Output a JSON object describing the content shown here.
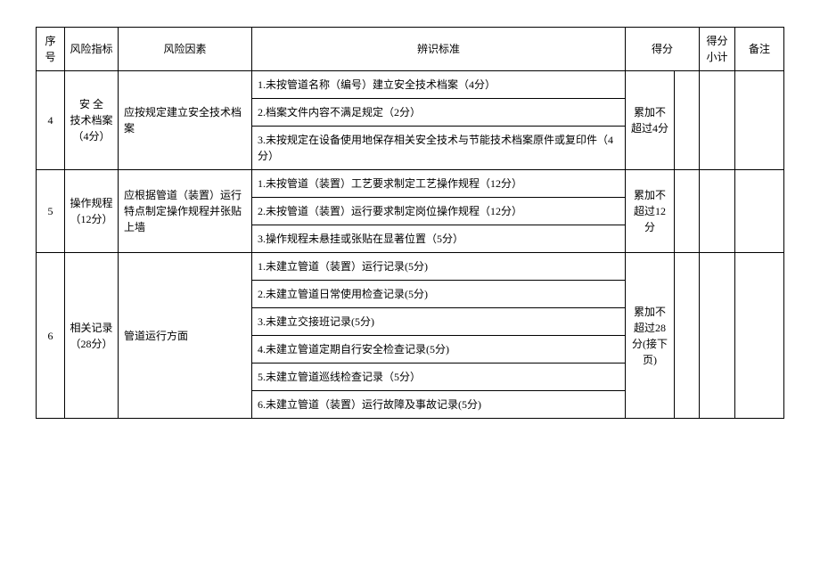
{
  "headers": {
    "seq": "序号",
    "indicator": "风险指标",
    "factor": "风险因素",
    "standard": "辨识标准",
    "score": "得分",
    "subtotal": "得分小计",
    "note": "备注"
  },
  "rows": [
    {
      "seq": "4",
      "indicator": "安 全\n技术档案\n（4分）",
      "factor": "应按规定建立安全技术档案",
      "standards": [
        "1.未按管道名称（编号）建立安全技术档案（4分）",
        "2.档案文件内容不满足规定（2分）",
        "3.未按规定在设备使用地保存相关安全技术与节能技术档案原件或复印件（4分）"
      ],
      "score_rule": "累加不超过4分"
    },
    {
      "seq": "5",
      "indicator": "操作规程\n（12分）",
      "factor": "应根据管道（装置）运行特点制定操作规程并张贴上墙",
      "standards": [
        "1.未按管道（装置）工艺要求制定工艺操作规程（12分）",
        "2.未按管道（装置）运行要求制定岗位操作规程（12分）",
        "3.操作规程未悬挂或张贴在显著位置（5分）"
      ],
      "score_rule": "累加不超过12分"
    },
    {
      "seq": "6",
      "indicator": "相关记录\n（28分）",
      "factor": "管道运行方面",
      "standards": [
        "1.未建立管道（装置）运行记录(5分)",
        "2.未建立管道日常使用检查记录(5分)",
        "3.未建立交接班记录(5分)",
        "4.未建立管道定期自行安全检查记录(5分)",
        "5.未建立管道巡线检查记录（5分）",
        "6.未建立管道（装置）运行故障及事故记录(5分)"
      ],
      "score_rule": "累加不超过28分(接下页)"
    }
  ]
}
